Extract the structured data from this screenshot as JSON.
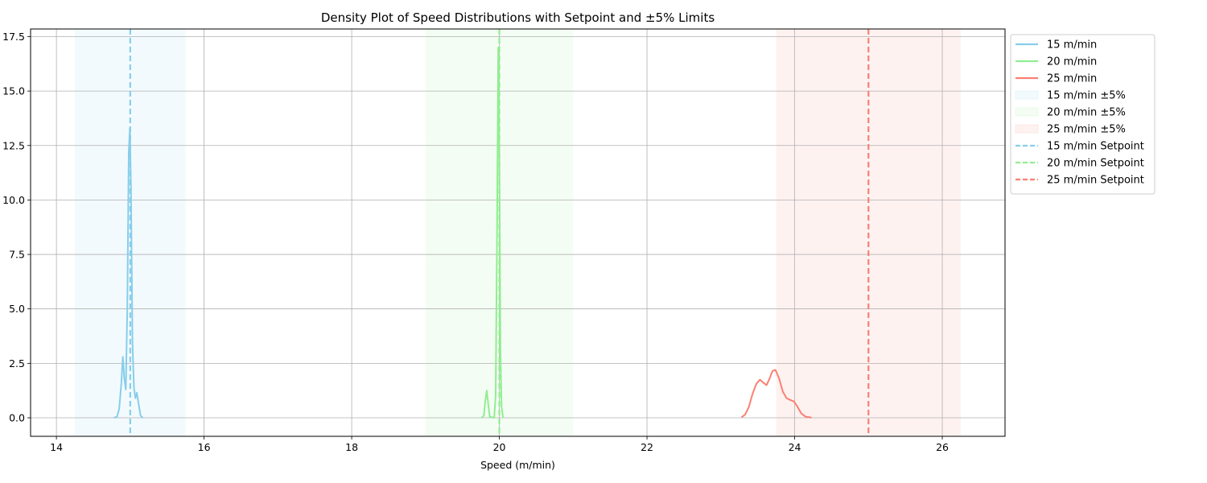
{
  "chart_data": {
    "type": "line",
    "title": "Density Plot of Speed Distributions with Setpoint and ±5% Limits",
    "xlabel": "Speed (m/min)",
    "ylabel": "",
    "xlim": [
      13.65,
      26.85
    ],
    "ylim": [
      -0.85,
      17.85
    ],
    "xticks": [
      14,
      16,
      18,
      20,
      22,
      24,
      26
    ],
    "xtick_labels": [
      "14",
      "16",
      "18",
      "20",
      "22",
      "24",
      "26"
    ],
    "yticks": [
      0,
      2.5,
      5,
      7.5,
      10,
      12.5,
      15,
      17.5
    ],
    "ytick_labels": [
      "0.0",
      "2.5",
      "5.0",
      "7.5",
      "10.0",
      "12.5",
      "15.0",
      "17.5"
    ],
    "grid": true,
    "legend_position": "outside-right-top",
    "series": [
      {
        "name": "15 m/min",
        "color": "#87ceeb",
        "points": [
          [
            14.78,
            0
          ],
          [
            14.82,
            0.05
          ],
          [
            14.85,
            0.4
          ],
          [
            14.88,
            1.6
          ],
          [
            14.9,
            2.8
          ],
          [
            14.92,
            1.8
          ],
          [
            14.94,
            1.3
          ],
          [
            14.96,
            5.0
          ],
          [
            14.98,
            12.2
          ],
          [
            14.995,
            13.3
          ],
          [
            15.01,
            10.5
          ],
          [
            15.03,
            3.5
          ],
          [
            15.05,
            1.4
          ],
          [
            15.07,
            0.9
          ],
          [
            15.09,
            1.15
          ],
          [
            15.11,
            0.7
          ],
          [
            15.14,
            0.1
          ],
          [
            15.17,
            0
          ]
        ]
      },
      {
        "name": "20 m/min",
        "color": "#90ee90",
        "points": [
          [
            19.76,
            0
          ],
          [
            19.79,
            0.1
          ],
          [
            19.81,
            0.8
          ],
          [
            19.83,
            1.25
          ],
          [
            19.85,
            0.6
          ],
          [
            19.87,
            0.05
          ],
          [
            19.93,
            0
          ],
          [
            19.95,
            1.0
          ],
          [
            19.97,
            9.0
          ],
          [
            19.985,
            17.0
          ],
          [
            20.0,
            12.0
          ],
          [
            20.015,
            3.0
          ],
          [
            20.03,
            0.5
          ],
          [
            20.05,
            0
          ]
        ]
      },
      {
        "name": "25 m/min",
        "color": "#fa8072",
        "points": [
          [
            23.28,
            0.02
          ],
          [
            23.33,
            0.15
          ],
          [
            23.38,
            0.5
          ],
          [
            23.43,
            1.1
          ],
          [
            23.48,
            1.55
          ],
          [
            23.53,
            1.75
          ],
          [
            23.58,
            1.6
          ],
          [
            23.62,
            1.5
          ],
          [
            23.66,
            1.8
          ],
          [
            23.7,
            2.15
          ],
          [
            23.74,
            2.2
          ],
          [
            23.79,
            1.8
          ],
          [
            23.84,
            1.2
          ],
          [
            23.89,
            0.9
          ],
          [
            23.94,
            0.82
          ],
          [
            23.99,
            0.75
          ],
          [
            24.04,
            0.5
          ],
          [
            24.09,
            0.2
          ],
          [
            24.15,
            0.05
          ],
          [
            24.23,
            0.01
          ]
        ]
      }
    ],
    "bands": [
      {
        "name": "15 m/min ±5%",
        "color": "#87ceeb",
        "x0": 14.25,
        "x1": 15.75
      },
      {
        "name": "20 m/min ±5%",
        "color": "#90ee90",
        "x0": 19.0,
        "x1": 21.0
      },
      {
        "name": "25 m/min ±5%",
        "color": "#fa8072",
        "x0": 23.75,
        "x1": 26.25
      }
    ],
    "setpoints": [
      {
        "name": "15 m/min Setpoint",
        "color": "#87ceeb",
        "x": 15
      },
      {
        "name": "20 m/min Setpoint",
        "color": "#90ee90",
        "x": 20
      },
      {
        "name": "25 m/min Setpoint",
        "color": "#fa8072",
        "x": 25
      }
    ]
  }
}
